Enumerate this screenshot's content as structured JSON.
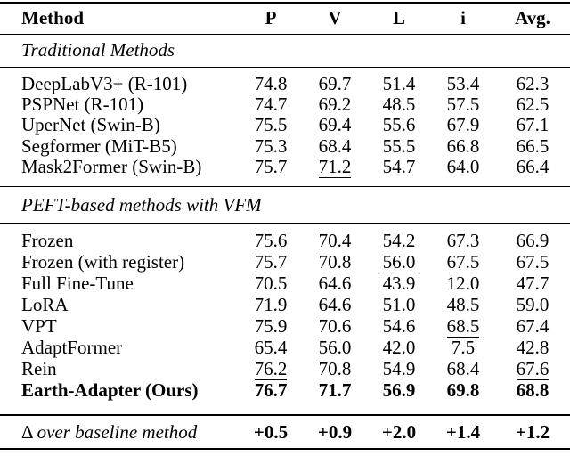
{
  "table": {
    "columns": [
      "Method",
      "P",
      "V",
      "L",
      "i",
      "Avg."
    ],
    "sections": [
      {
        "title": "Traditional Methods",
        "rows": [
          {
            "method": "DeepLabV3+ (R-101)",
            "values": [
              "74.8",
              "69.7",
              "51.4",
              "53.4",
              "62.3"
            ]
          },
          {
            "method": "PSPNet (R-101)",
            "values": [
              "74.7",
              "69.2",
              "48.5",
              "57.5",
              "62.5"
            ]
          },
          {
            "method": "UperNet (Swin-B)",
            "values": [
              "75.5",
              "69.4",
              "55.6",
              "67.9",
              "67.1"
            ]
          },
          {
            "method": "Segformer (MiT-B5)",
            "values": [
              "75.3",
              "68.4",
              "55.5",
              "66.8",
              "66.5"
            ]
          },
          {
            "method": "Mask2Former (Swin-B)",
            "values": [
              "75.7",
              "71.2",
              "54.7",
              "64.0",
              "66.4"
            ],
            "underline": [
              false,
              true,
              false,
              false,
              false
            ]
          }
        ]
      },
      {
        "title": "PEFT-based methods with VFM",
        "rows": [
          {
            "method": "Frozen",
            "values": [
              "75.6",
              "70.4",
              "54.2",
              "67.3",
              "66.9"
            ]
          },
          {
            "method": "Frozen (with register)",
            "values": [
              "75.7",
              "70.8",
              "56.0",
              "67.5",
              "67.5"
            ],
            "underline": [
              false,
              false,
              true,
              false,
              false
            ]
          },
          {
            "method": "Full Fine-Tune",
            "values": [
              "70.5",
              "64.6",
              "43.9",
              "12.0",
              "47.7"
            ]
          },
          {
            "method": "LoRA",
            "values": [
              "71.9",
              "64.6",
              "51.0",
              "48.5",
              "59.0"
            ]
          },
          {
            "method": "VPT",
            "values": [
              "75.9",
              "70.6",
              "54.6",
              "68.5",
              "67.4"
            ],
            "underline": [
              false,
              false,
              false,
              true,
              false
            ]
          },
          {
            "method": "AdaptFormer",
            "values": [
              "65.4",
              "56.0",
              "42.0",
              "7.5",
              "42.8"
            ]
          },
          {
            "method": "Rein",
            "values": [
              "76.2",
              "70.8",
              "54.9",
              "68.4",
              "67.6"
            ],
            "underline": [
              true,
              false,
              false,
              false,
              true
            ]
          },
          {
            "method": "Earth-Adapter (Ours)",
            "values": [
              "76.7",
              "71.7",
              "56.9",
              "69.8",
              "68.8"
            ],
            "bold": true
          }
        ]
      }
    ],
    "delta": {
      "symbol": "Δ",
      "label": "over baseline method",
      "values": [
        "+0.5",
        "+0.9",
        "+2.0",
        "+1.4",
        "+1.2"
      ]
    }
  },
  "colors": {
    "background": "#ffffff",
    "text": "#000000",
    "rule": "#000000"
  }
}
